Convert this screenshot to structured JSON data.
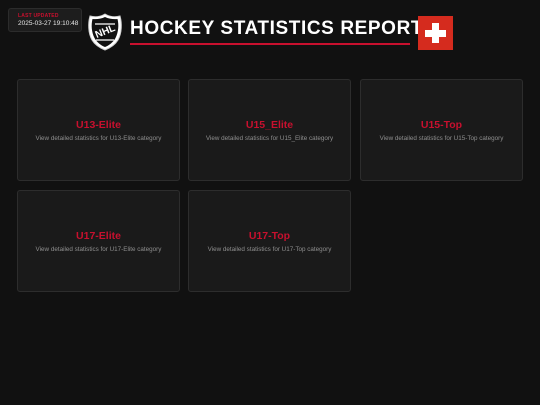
{
  "last_updated": {
    "label": "LAST UPDATED",
    "value": "2025-03-27 19:10:48"
  },
  "header": {
    "logo_icon": "nhl-shield-logo",
    "logo_text": "NHL",
    "title": "HOCKEY STATISTICS REPORTS",
    "flag_icon": "swiss-flag-icon"
  },
  "colors": {
    "accent": "#c8102e",
    "background": "#111111",
    "card_background": "#1a1a1a",
    "flag_red": "#d52b1e"
  },
  "cards": [
    {
      "title": "U13-Elite",
      "description": "View detailed statistics for U13-Elite category"
    },
    {
      "title": "U15_Elite",
      "description": "View detailed statistics for U15_Elite category"
    },
    {
      "title": "U15-Top",
      "description": "View detailed statistics for U15-Top category"
    },
    {
      "title": "U17-Elite",
      "description": "View detailed statistics for U17-Elite category"
    },
    {
      "title": "U17-Top",
      "description": "View detailed statistics for U17-Top category"
    }
  ]
}
